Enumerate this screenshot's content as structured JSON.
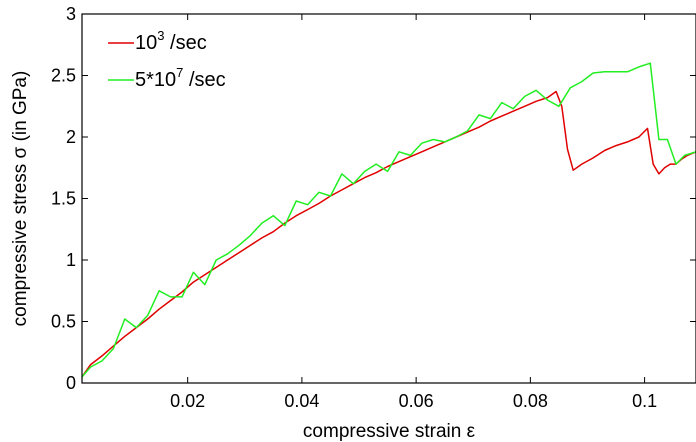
{
  "chart_data": {
    "type": "line",
    "title": "",
    "xlabel": "compressive strain ε",
    "ylabel": "compressive stress σ (in GPa)",
    "xlim": [
      0.0015,
      0.109
    ],
    "ylim": [
      0,
      3
    ],
    "x_ticks": [
      0.02,
      0.04,
      0.06,
      0.08,
      0.1
    ],
    "x_tick_labels": [
      "0.02",
      "0.04",
      "0.06",
      "0.08",
      "0.1"
    ],
    "y_ticks": [
      0,
      0.5,
      1,
      1.5,
      2,
      2.5,
      3
    ],
    "y_tick_labels": [
      "0",
      "0.5",
      "1",
      "1.5",
      "2",
      "2.5",
      "3"
    ],
    "grid": false,
    "legend_position": "top-left",
    "series": [
      {
        "name_base": "10",
        "name_exp": "3",
        "name_tail": " /sec",
        "color": "#e00000",
        "x": [
          0.0015,
          0.003,
          0.005,
          0.007,
          0.009,
          0.011,
          0.013,
          0.015,
          0.017,
          0.019,
          0.021,
          0.023,
          0.025,
          0.027,
          0.029,
          0.031,
          0.033,
          0.035,
          0.037,
          0.039,
          0.041,
          0.043,
          0.045,
          0.047,
          0.049,
          0.051,
          0.053,
          0.055,
          0.057,
          0.059,
          0.061,
          0.063,
          0.065,
          0.067,
          0.069,
          0.071,
          0.073,
          0.075,
          0.077,
          0.079,
          0.081,
          0.083,
          0.0845,
          0.0855,
          0.0865,
          0.0875,
          0.089,
          0.091,
          0.093,
          0.095,
          0.097,
          0.099,
          0.1005,
          0.1015,
          0.1025,
          0.1035,
          0.1045,
          0.1055,
          0.1065,
          0.1075,
          0.109
        ],
        "y": [
          0.05,
          0.15,
          0.22,
          0.3,
          0.38,
          0.45,
          0.52,
          0.6,
          0.67,
          0.74,
          0.82,
          0.88,
          0.94,
          1.0,
          1.06,
          1.12,
          1.18,
          1.23,
          1.3,
          1.36,
          1.41,
          1.46,
          1.52,
          1.57,
          1.62,
          1.67,
          1.71,
          1.76,
          1.8,
          1.84,
          1.88,
          1.92,
          1.96,
          2.0,
          2.04,
          2.08,
          2.13,
          2.17,
          2.21,
          2.25,
          2.29,
          2.32,
          2.37,
          2.25,
          1.9,
          1.73,
          1.78,
          1.83,
          1.89,
          1.93,
          1.96,
          2.0,
          2.07,
          1.78,
          1.7,
          1.75,
          1.78,
          1.78,
          1.82,
          1.85,
          1.88
        ]
      },
      {
        "name_base": "5*10",
        "name_exp": "7",
        "name_tail": " /sec",
        "color": "#22ee22",
        "x": [
          0.0015,
          0.003,
          0.005,
          0.007,
          0.009,
          0.011,
          0.013,
          0.015,
          0.017,
          0.019,
          0.021,
          0.023,
          0.025,
          0.027,
          0.029,
          0.031,
          0.033,
          0.035,
          0.037,
          0.039,
          0.041,
          0.043,
          0.045,
          0.047,
          0.049,
          0.051,
          0.053,
          0.055,
          0.057,
          0.059,
          0.061,
          0.063,
          0.065,
          0.067,
          0.069,
          0.071,
          0.073,
          0.075,
          0.077,
          0.079,
          0.081,
          0.083,
          0.085,
          0.087,
          0.089,
          0.091,
          0.093,
          0.095,
          0.097,
          0.099,
          0.101,
          0.1025,
          0.104,
          0.1055,
          0.107,
          0.109
        ],
        "y": [
          0.05,
          0.13,
          0.18,
          0.28,
          0.52,
          0.45,
          0.55,
          0.75,
          0.7,
          0.7,
          0.9,
          0.8,
          1.0,
          1.05,
          1.12,
          1.2,
          1.3,
          1.36,
          1.28,
          1.48,
          1.45,
          1.55,
          1.52,
          1.7,
          1.62,
          1.72,
          1.78,
          1.72,
          1.88,
          1.85,
          1.95,
          1.98,
          1.96,
          2.0,
          2.05,
          2.18,
          2.15,
          2.28,
          2.23,
          2.33,
          2.38,
          2.3,
          2.25,
          2.4,
          2.45,
          2.52,
          2.53,
          2.53,
          2.53,
          2.57,
          2.6,
          1.98,
          1.98,
          1.78,
          1.85,
          1.88
        ]
      }
    ]
  }
}
